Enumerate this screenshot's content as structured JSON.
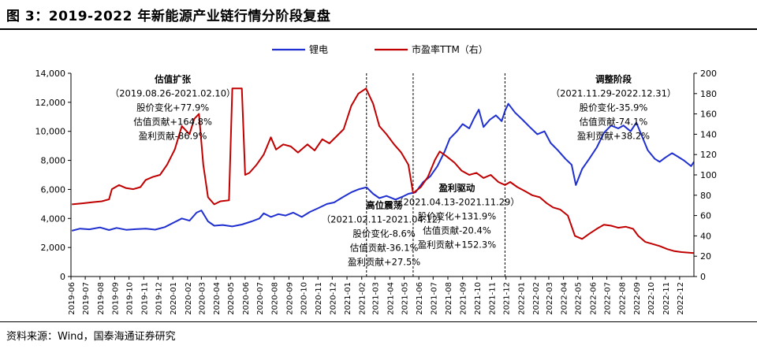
{
  "figure": {
    "title": "图 3：2019-2022 年新能源产业链行情分阶段复盘",
    "source": "资料来源：Wind，国泰海通证券研究"
  },
  "chart_data": {
    "type": "line",
    "title": "",
    "x_dates": [
      "2019-06",
      "2019-07",
      "2019-08",
      "2019-09",
      "2019-10",
      "2019-11",
      "2019-12",
      "2020-01",
      "2020-02",
      "2020-03",
      "2020-04",
      "2020-05",
      "2020-06",
      "2020-07",
      "2020-08",
      "2020-09",
      "2020-10",
      "2020-11",
      "2020-12",
      "2021-01",
      "2021-02",
      "2021-03",
      "2021-04",
      "2021-05",
      "2021-06",
      "2021-07",
      "2021-08",
      "2021-09",
      "2021-10",
      "2021-11",
      "2021-12",
      "2022-01",
      "2022-02",
      "2022-03",
      "2022-04",
      "2022-05",
      "2022-06",
      "2022-07",
      "2022-08",
      "2022-09",
      "2022-10",
      "2022-11",
      "2022-12"
    ],
    "y_left": {
      "min": 0,
      "max": 14000,
      "ticks": [
        "0",
        "2,000",
        "4,000",
        "6,000",
        "8,000",
        "10,000",
        "12,000",
        "14,000"
      ]
    },
    "y_right": {
      "min": 0,
      "max": 200,
      "ticks": [
        "0",
        "20",
        "40",
        "60",
        "80",
        "100",
        "120",
        "140",
        "160",
        "180",
        "200"
      ]
    },
    "legend": {
      "placement": "top-center"
    },
    "series": [
      {
        "name": "锂电",
        "axis": "left",
        "color": "#1f2fd0",
        "points": [
          [
            "2019-06-03",
            3150
          ],
          [
            "2019-06-20",
            3300
          ],
          [
            "2019-07-10",
            3250
          ],
          [
            "2019-08-01",
            3380
          ],
          [
            "2019-08-20",
            3200
          ],
          [
            "2019-09-05",
            3350
          ],
          [
            "2019-09-25",
            3220
          ],
          [
            "2019-10-15",
            3260
          ],
          [
            "2019-11-05",
            3300
          ],
          [
            "2019-11-25",
            3230
          ],
          [
            "2019-12-15",
            3400
          ],
          [
            "2020-01-05",
            3750
          ],
          [
            "2020-01-20",
            4000
          ],
          [
            "2020-02-05",
            3850
          ],
          [
            "2020-02-20",
            4400
          ],
          [
            "2020-03-01",
            4550
          ],
          [
            "2020-03-15",
            3800
          ],
          [
            "2020-03-28",
            3500
          ],
          [
            "2020-04-15",
            3550
          ],
          [
            "2020-05-05",
            3450
          ],
          [
            "2020-05-25",
            3580
          ],
          [
            "2020-06-15",
            3800
          ],
          [
            "2020-07-01",
            4000
          ],
          [
            "2020-07-10",
            4350
          ],
          [
            "2020-07-25",
            4100
          ],
          [
            "2020-08-10",
            4300
          ],
          [
            "2020-08-25",
            4200
          ],
          [
            "2020-09-10",
            4400
          ],
          [
            "2020-09-28",
            4100
          ],
          [
            "2020-10-15",
            4450
          ],
          [
            "2020-11-01",
            4700
          ],
          [
            "2020-11-20",
            5000
          ],
          [
            "2020-12-05",
            5100
          ],
          [
            "2020-12-25",
            5500
          ],
          [
            "2021-01-10",
            5800
          ],
          [
            "2021-01-25",
            6000
          ],
          [
            "2021-02-05",
            6100
          ],
          [
            "2021-02-11",
            6150
          ],
          [
            "2021-02-25",
            5700
          ],
          [
            "2021-03-10",
            5400
          ],
          [
            "2021-03-25",
            5550
          ],
          [
            "2021-04-13",
            5300
          ],
          [
            "2021-04-28",
            5500
          ],
          [
            "2021-05-10",
            5700
          ],
          [
            "2021-05-25",
            5800
          ],
          [
            "2021-06-10",
            6500
          ],
          [
            "2021-06-25",
            6900
          ],
          [
            "2021-07-10",
            7600
          ],
          [
            "2021-07-25",
            8600
          ],
          [
            "2021-08-05",
            9500
          ],
          [
            "2021-08-20",
            10000
          ],
          [
            "2021-09-01",
            10500
          ],
          [
            "2021-09-15",
            10200
          ],
          [
            "2021-09-25",
            10900
          ],
          [
            "2021-10-05",
            11500
          ],
          [
            "2021-10-15",
            10300
          ],
          [
            "2021-10-28",
            10800
          ],
          [
            "2021-11-10",
            11100
          ],
          [
            "2021-11-22",
            10700
          ],
          [
            "2021-11-29",
            11400
          ],
          [
            "2021-12-06",
            11900
          ],
          [
            "2021-12-20",
            11300
          ],
          [
            "2022-01-05",
            10800
          ],
          [
            "2022-01-20",
            10300
          ],
          [
            "2022-02-05",
            9800
          ],
          [
            "2022-02-20",
            10000
          ],
          [
            "2022-03-05",
            9200
          ],
          [
            "2022-03-20",
            8700
          ],
          [
            "2022-04-05",
            8100
          ],
          [
            "2022-04-18",
            7700
          ],
          [
            "2022-04-27",
            6300
          ],
          [
            "2022-05-10",
            7400
          ],
          [
            "2022-05-25",
            8100
          ],
          [
            "2022-06-10",
            8900
          ],
          [
            "2022-06-25",
            9900
          ],
          [
            "2022-07-10",
            10400
          ],
          [
            "2022-07-25",
            10200
          ],
          [
            "2022-08-05",
            10400
          ],
          [
            "2022-08-20",
            10000
          ],
          [
            "2022-09-01",
            10600
          ],
          [
            "2022-09-10",
            9900
          ],
          [
            "2022-09-25",
            8700
          ],
          [
            "2022-10-10",
            8100
          ],
          [
            "2022-10-20",
            7900
          ],
          [
            "2022-11-01",
            8200
          ],
          [
            "2022-11-15",
            8500
          ],
          [
            "2022-11-25",
            8300
          ],
          [
            "2022-12-10",
            8000
          ],
          [
            "2022-12-25",
            7600
          ],
          [
            "2022-12-31",
            7900
          ]
        ]
      },
      {
        "name": "市盈率TTM（右）",
        "axis": "right",
        "color": "#c00000",
        "points": [
          [
            "2019-06-03",
            71
          ],
          [
            "2019-06-25",
            72
          ],
          [
            "2019-07-15",
            73
          ],
          [
            "2019-08-05",
            74
          ],
          [
            "2019-08-20",
            76
          ],
          [
            "2019-08-26",
            86
          ],
          [
            "2019-09-10",
            90
          ],
          [
            "2019-09-25",
            87
          ],
          [
            "2019-10-10",
            86
          ],
          [
            "2019-10-25",
            88
          ],
          [
            "2019-11-05",
            95
          ],
          [
            "2019-11-20",
            98
          ],
          [
            "2019-12-05",
            100
          ],
          [
            "2019-12-20",
            110
          ],
          [
            "2020-01-05",
            125
          ],
          [
            "2020-01-20",
            148
          ],
          [
            "2020-02-05",
            140
          ],
          [
            "2020-02-15",
            155
          ],
          [
            "2020-02-25",
            160
          ],
          [
            "2020-03-05",
            110
          ],
          [
            "2020-03-15",
            78
          ],
          [
            "2020-03-28",
            71
          ],
          [
            "2020-04-10",
            74
          ],
          [
            "2020-04-28",
            75
          ],
          [
            "2020-05-05",
            185
          ],
          [
            "2020-05-25",
            185
          ],
          [
            "2020-06-01",
            100
          ],
          [
            "2020-06-10",
            102
          ],
          [
            "2020-06-25",
            110
          ],
          [
            "2020-07-10",
            120
          ],
          [
            "2020-07-25",
            137
          ],
          [
            "2020-08-05",
            125
          ],
          [
            "2020-08-20",
            130
          ],
          [
            "2020-09-05",
            128
          ],
          [
            "2020-09-20",
            122
          ],
          [
            "2020-10-10",
            130
          ],
          [
            "2020-10-25",
            124
          ],
          [
            "2020-11-10",
            135
          ],
          [
            "2020-11-25",
            131
          ],
          [
            "2020-12-10",
            138
          ],
          [
            "2020-12-25",
            145
          ],
          [
            "2021-01-10",
            168
          ],
          [
            "2021-01-25",
            180
          ],
          [
            "2021-02-10",
            185
          ],
          [
            "2021-02-25",
            170
          ],
          [
            "2021-03-10",
            148
          ],
          [
            "2021-03-25",
            140
          ],
          [
            "2021-04-10",
            130
          ],
          [
            "2021-04-25",
            122
          ],
          [
            "2021-05-10",
            110
          ],
          [
            "2021-05-20",
            82
          ],
          [
            "2021-06-05",
            88
          ],
          [
            "2021-06-20",
            98
          ],
          [
            "2021-07-05",
            115
          ],
          [
            "2021-07-15",
            123
          ],
          [
            "2021-07-30",
            118
          ],
          [
            "2021-08-15",
            112
          ],
          [
            "2021-08-30",
            104
          ],
          [
            "2021-09-15",
            100
          ],
          [
            "2021-09-30",
            102
          ],
          [
            "2021-10-15",
            97
          ],
          [
            "2021-10-30",
            100
          ],
          [
            "2021-11-15",
            93
          ],
          [
            "2021-11-29",
            90
          ],
          [
            "2021-12-10",
            93
          ],
          [
            "2021-12-25",
            88
          ],
          [
            "2022-01-10",
            84
          ],
          [
            "2022-01-25",
            80
          ],
          [
            "2022-02-10",
            78
          ],
          [
            "2022-02-25",
            72
          ],
          [
            "2022-03-10",
            68
          ],
          [
            "2022-03-25",
            66
          ],
          [
            "2022-04-10",
            60
          ],
          [
            "2022-04-25",
            40
          ],
          [
            "2022-05-10",
            37
          ],
          [
            "2022-05-25",
            42
          ],
          [
            "2022-06-10",
            47
          ],
          [
            "2022-06-25",
            51
          ],
          [
            "2022-07-10",
            50
          ],
          [
            "2022-07-25",
            48
          ],
          [
            "2022-08-10",
            49
          ],
          [
            "2022-08-25",
            47
          ],
          [
            "2022-09-05",
            40
          ],
          [
            "2022-09-20",
            34
          ],
          [
            "2022-10-05",
            32
          ],
          [
            "2022-10-20",
            30
          ],
          [
            "2022-11-05",
            27
          ],
          [
            "2022-11-20",
            25
          ],
          [
            "2022-12-05",
            24
          ],
          [
            "2022-12-31",
            23
          ]
        ]
      }
    ],
    "phase_lines": [
      "2021-02-11",
      "2021-05-20",
      "2021-11-29"
    ],
    "annotations": [
      {
        "id": "phase1",
        "anchor_date": "2020-01-01",
        "anchor_y_right": 191,
        "lines": [
          "估值扩张",
          "（2019.08.26-2021.02.10）",
          "股价变化+77.9%",
          "估值贡献+164.8%",
          "盈利贡献-86.9%"
        ]
      },
      {
        "id": "phase2",
        "anchor_date": "2021-03-20",
        "anchor_y_right": 67,
        "lines": [
          "高位震荡",
          "（2021.02.11-2021.04.12）",
          "股价变化-8.6%",
          "估值贡献-36.1%",
          "盈利贡献+27.5%"
        ]
      },
      {
        "id": "phase3",
        "anchor_date": "2021-08-20",
        "anchor_y_right": 84,
        "lines": [
          "盈利驱动",
          "（2021.04.13-2021.11.29）",
          "股价变化+131.9%",
          "估值贡献-20.4%",
          "盈利贡献+152.3%"
        ]
      },
      {
        "id": "phase4",
        "anchor_date": "2022-07-15",
        "anchor_y_right": 191,
        "lines": [
          "调整阶段",
          "（2021.11.29-2022.12.31）",
          "股价变化-35.9%",
          "估值贡献-74.1%",
          "盈利贡献+38.2%"
        ]
      }
    ]
  }
}
